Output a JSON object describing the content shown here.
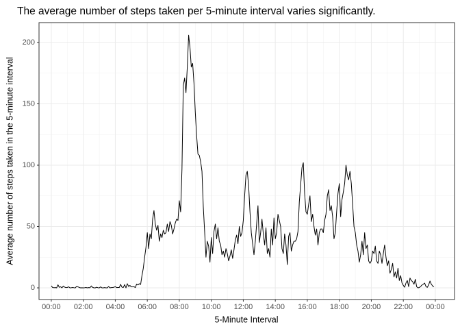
{
  "chart_data": {
    "type": "line",
    "title": "The average number of steps taken per 5-minute interval varies significantly.",
    "x_label": "5-Minute Interval",
    "y_label": "Average number of steps taken in the 5-minute interval",
    "color": "#000000",
    "grid": true,
    "xlim": [
      -46,
      1512
    ],
    "ylim": [
      -9.5,
      216.2
    ],
    "xticks": [
      {
        "value": 0,
        "label": "00:00"
      },
      {
        "value": 120,
        "label": "02:00"
      },
      {
        "value": 240,
        "label": "04:00"
      },
      {
        "value": 360,
        "label": "06:00"
      },
      {
        "value": 480,
        "label": "08:00"
      },
      {
        "value": 600,
        "label": "10:00"
      },
      {
        "value": 720,
        "label": "12:00"
      },
      {
        "value": 840,
        "label": "14:00"
      },
      {
        "value": 960,
        "label": "16:00"
      },
      {
        "value": 1080,
        "label": "18:00"
      },
      {
        "value": 1200,
        "label": "20:00"
      },
      {
        "value": 1320,
        "label": "22:00"
      },
      {
        "value": 1440,
        "label": "00:00"
      }
    ],
    "yticks": [
      0,
      50,
      100,
      150,
      200
    ],
    "x": [
      0,
      5,
      10,
      15,
      20,
      25,
      30,
      35,
      40,
      45,
      50,
      55,
      60,
      65,
      70,
      75,
      80,
      85,
      90,
      95,
      100,
      105,
      110,
      115,
      120,
      125,
      130,
      135,
      140,
      145,
      150,
      155,
      160,
      165,
      170,
      175,
      180,
      185,
      190,
      195,
      200,
      205,
      210,
      215,
      220,
      225,
      230,
      235,
      240,
      245,
      250,
      255,
      260,
      265,
      270,
      275,
      280,
      285,
      290,
      295,
      300,
      305,
      310,
      315,
      320,
      325,
      330,
      335,
      340,
      345,
      350,
      355,
      360,
      365,
      370,
      375,
      380,
      385,
      390,
      395,
      400,
      405,
      410,
      415,
      420,
      425,
      430,
      435,
      440,
      445,
      450,
      455,
      460,
      465,
      470,
      475,
      480,
      485,
      490,
      495,
      500,
      505,
      510,
      515,
      520,
      525,
      530,
      535,
      540,
      545,
      550,
      555,
      560,
      565,
      570,
      575,
      580,
      585,
      590,
      595,
      600,
      605,
      610,
      615,
      620,
      625,
      630,
      635,
      640,
      645,
      650,
      655,
      660,
      665,
      670,
      675,
      680,
      685,
      690,
      695,
      700,
      705,
      710,
      715,
      720,
      725,
      730,
      735,
      740,
      745,
      750,
      755,
      760,
      765,
      770,
      775,
      780,
      785,
      790,
      795,
      800,
      805,
      810,
      815,
      820,
      825,
      830,
      835,
      840,
      845,
      850,
      855,
      860,
      865,
      870,
      875,
      880,
      885,
      890,
      895,
      900,
      905,
      910,
      915,
      920,
      925,
      930,
      935,
      940,
      945,
      950,
      955,
      960,
      965,
      970,
      975,
      980,
      985,
      990,
      995,
      1000,
      1005,
      1010,
      1015,
      1020,
      1025,
      1030,
      1035,
      1040,
      1045,
      1050,
      1055,
      1060,
      1065,
      1070,
      1075,
      1080,
      1085,
      1090,
      1095,
      1100,
      1105,
      1110,
      1115,
      1120,
      1125,
      1130,
      1135,
      1140,
      1145,
      1150,
      1155,
      1160,
      1165,
      1170,
      1175,
      1180,
      1185,
      1190,
      1195,
      1200,
      1205,
      1210,
      1215,
      1220,
      1225,
      1230,
      1235,
      1240,
      1245,
      1250,
      1255,
      1260,
      1265,
      1270,
      1275,
      1280,
      1285,
      1290,
      1295,
      1300,
      1305,
      1310,
      1315,
      1320,
      1325,
      1330,
      1335,
      1340,
      1345,
      1350,
      1355,
      1360,
      1365,
      1370,
      1375,
      1380,
      1385,
      1390,
      1395,
      1400,
      1405,
      1410,
      1415,
      1420,
      1425,
      1430,
      1435
    ],
    "values": [
      1.7,
      0.3,
      0.1,
      0.2,
      0,
      2.5,
      0.5,
      0.9,
      0,
      1.5,
      0.6,
      0.2,
      0.3,
      0.9,
      0,
      0.1,
      0.3,
      0.1,
      0,
      1.2,
      0.9,
      0.3,
      0,
      0.1,
      0,
      0.1,
      0.3,
      0,
      0.2,
      0.1,
      1.6,
      0.4,
      0,
      0,
      0.5,
      0.1,
      0,
      0.8,
      0,
      0,
      0.2,
      0,
      0,
      1.1,
      0,
      0.2,
      0.3,
      0.5,
      1.0,
      0.2,
      0.3,
      0.3,
      2.9,
      0.6,
      0.3,
      2.7,
      0,
      3.4,
      1.2,
      2.0,
      0.8,
      0.9,
      1.0,
      0.2,
      3.1,
      2.4,
      3.4,
      2.8,
      10,
      16,
      25,
      33,
      45,
      32,
      44,
      40,
      56,
      63,
      52,
      47,
      51,
      38,
      44,
      41,
      47,
      44,
      45,
      52,
      46,
      54,
      51,
      44,
      48,
      53,
      56,
      55,
      71,
      62,
      97,
      165,
      171,
      159,
      180,
      206,
      196,
      180,
      183,
      167,
      143,
      124,
      109,
      108,
      103,
      95,
      66,
      46,
      25,
      38,
      34,
      21,
      41,
      28,
      46,
      52,
      40,
      49,
      38,
      35,
      27,
      30,
      25,
      32,
      28,
      22,
      26,
      31,
      24,
      31,
      39,
      43,
      36,
      50,
      42,
      45,
      55,
      75,
      92,
      95,
      83,
      62,
      45,
      36,
      27,
      38,
      52,
      67,
      37,
      45,
      56,
      44,
      35,
      49,
      28,
      32,
      25,
      48,
      35,
      57,
      40,
      45,
      60,
      55,
      50,
      32,
      28,
      44,
      35,
      19,
      42,
      45,
      30,
      35,
      38,
      38,
      40,
      46,
      70,
      84,
      98,
      102,
      77,
      62,
      60,
      68,
      75,
      54,
      60,
      50,
      43,
      48,
      35,
      45,
      48,
      48,
      45,
      55,
      60,
      75,
      80,
      63,
      67,
      58,
      40,
      45,
      62,
      77,
      85,
      58,
      72,
      78,
      85,
      100,
      92,
      88,
      95,
      85,
      68,
      50,
      45,
      35,
      30,
      21,
      27,
      38,
      27,
      45,
      32,
      35,
      22,
      20,
      22,
      30,
      28,
      34,
      22,
      20,
      30,
      27,
      20,
      28,
      35,
      25,
      18,
      22,
      12,
      15,
      20,
      9,
      13,
      8,
      16,
      6,
      10,
      4,
      2,
      0.5,
      4,
      6,
      1,
      8,
      6,
      5,
      3,
      7,
      1,
      0,
      0.3,
      1.2,
      2.3,
      3,
      3.9,
      1.1,
      0.4,
      2.5,
      5.6,
      3,
      1.5,
      1.1
    ]
  }
}
